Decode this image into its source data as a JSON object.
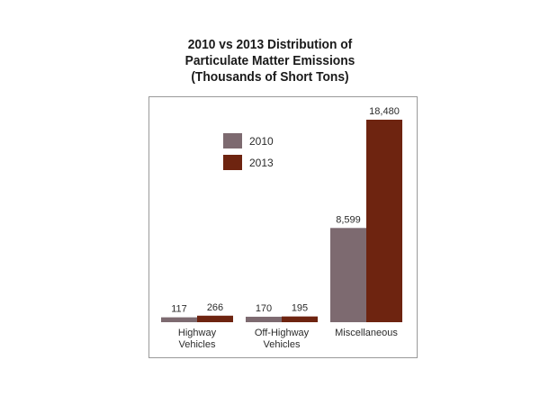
{
  "chart_data": {
    "type": "bar",
    "title_lines": [
      "2010 vs 2013 Distribution of",
      "Particulate Matter Emissions",
      "(Thousands of Short Tons)"
    ],
    "categories": [
      [
        "Highway",
        "Vehicles"
      ],
      [
        "Off-Highway",
        "Vehicles"
      ],
      [
        "Miscellaneous"
      ]
    ],
    "series": [
      {
        "name": "2010",
        "color": "#7d6a70",
        "values": [
          117,
          170,
          8599
        ],
        "labels": [
          "117",
          "170",
          "8,599"
        ]
      },
      {
        "name": "2013",
        "color": "#6e2410",
        "values": [
          266,
          195,
          18480
        ],
        "labels": [
          "266",
          "195",
          "18,480"
        ]
      }
    ],
    "ylim": [
      0,
      18480
    ],
    "legend_position": "top-center",
    "grid": false
  }
}
